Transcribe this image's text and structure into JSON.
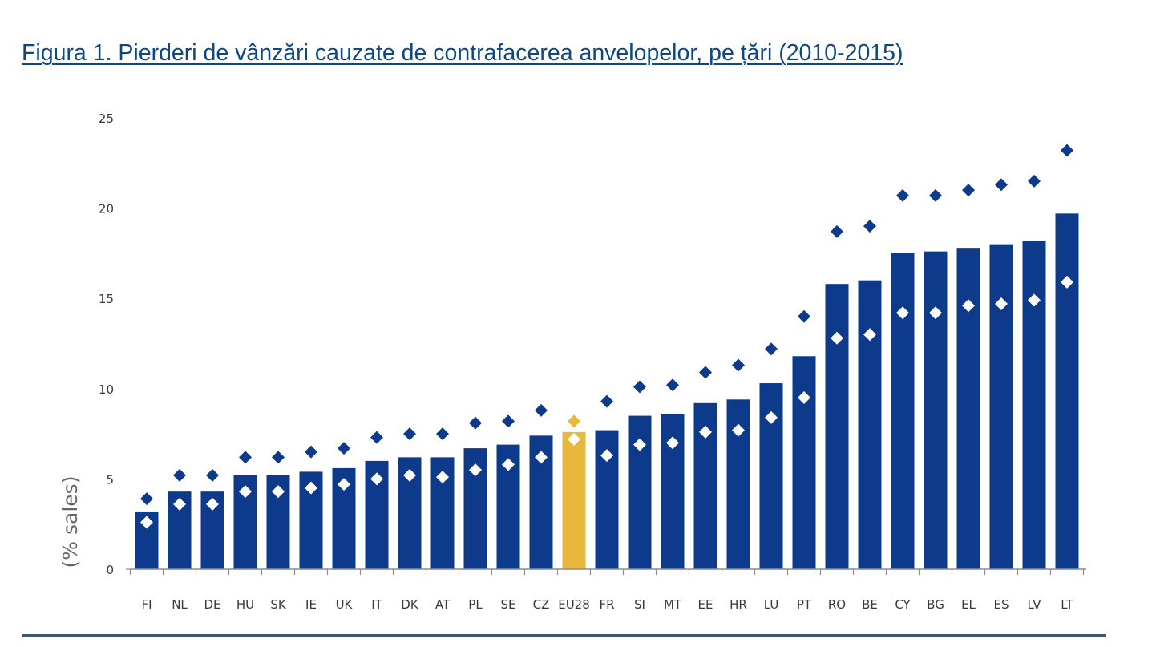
{
  "page": {
    "title": "Figura 1. Pierderi de vânzări cauzate de contrafacerea anvelopelor, pe țări (2010-2015)"
  },
  "chart_data": {
    "type": "bar",
    "title": "Figura 1. Pierderi de vânzări cauzate de contrafacerea anvelopelor, pe țări (2010-2015)",
    "xlabel": "",
    "ylabel": "(% sales)",
    "ylim": [
      0,
      25
    ],
    "yticks": [
      "0",
      "5",
      "10",
      "15",
      "20",
      "25"
    ],
    "grid": false,
    "legend": "none",
    "categories": [
      "FI",
      "NL",
      "DE",
      "HU",
      "SK",
      "IE",
      "UK",
      "IT",
      "DK",
      "AT",
      "PL",
      "SE",
      "CZ",
      "EU28",
      "FR",
      "SI",
      "MT",
      "EE",
      "HR",
      "LU",
      "PT",
      "RO",
      "BE",
      "CY",
      "BG",
      "EL",
      "ES",
      "LV",
      "LT"
    ],
    "highlight_category": "EU28",
    "series": [
      {
        "kind": "bar",
        "values": [
          3.2,
          4.3,
          4.3,
          5.2,
          5.2,
          5.4,
          5.6,
          6.0,
          6.2,
          6.2,
          6.7,
          6.9,
          7.4,
          7.6,
          7.7,
          8.5,
          8.6,
          9.2,
          9.4,
          10.3,
          11.8,
          15.8,
          16.0,
          17.5,
          17.6,
          17.8,
          18.0,
          18.2,
          19.7
        ]
      },
      {
        "kind": "diamond-upper",
        "values": [
          3.9,
          5.2,
          5.2,
          6.2,
          6.2,
          6.5,
          6.7,
          7.3,
          7.5,
          7.5,
          8.1,
          8.2,
          8.8,
          8.2,
          9.3,
          10.1,
          10.2,
          10.9,
          11.3,
          12.2,
          14.0,
          18.7,
          19.0,
          20.7,
          20.7,
          21.0,
          21.3,
          21.5,
          23.2
        ]
      },
      {
        "kind": "diamond-lower",
        "values": [
          2.6,
          3.6,
          3.6,
          4.3,
          4.3,
          4.5,
          4.7,
          5.0,
          5.2,
          5.1,
          5.5,
          5.8,
          6.2,
          7.2,
          6.3,
          6.9,
          7.0,
          7.6,
          7.7,
          8.4,
          9.5,
          12.8,
          13.0,
          14.2,
          14.2,
          14.6,
          14.7,
          14.9,
          15.9
        ]
      }
    ],
    "colors": {
      "bar": "#0d3a8a",
      "highlight": "#e8b73b",
      "axis": "#8c8c8c",
      "tick_text": "#3a3a3a",
      "ylabel_text": "#666666",
      "diamond_lower": "#ffffff"
    }
  }
}
